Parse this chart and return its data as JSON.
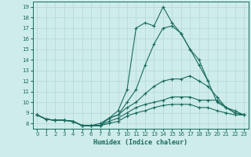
{
  "title": "",
  "xlabel": "Humidex (Indice chaleur)",
  "ylabel": "",
  "bg_color": "#ceecea",
  "grid_color": "#b8dbd8",
  "line_color": "#1a6b5e",
  "xlim": [
    -0.5,
    23.5
  ],
  "ylim": [
    7.5,
    19.5
  ],
  "xticks": [
    0,
    1,
    2,
    3,
    4,
    5,
    6,
    7,
    8,
    9,
    10,
    11,
    12,
    13,
    14,
    15,
    16,
    17,
    18,
    19,
    20,
    21,
    22,
    23
  ],
  "yticks": [
    8,
    9,
    10,
    11,
    12,
    13,
    14,
    15,
    16,
    17,
    18,
    19
  ],
  "series": [
    {
      "x": [
        0,
        1,
        2,
        3,
        4,
        5,
        6,
        7,
        8,
        9,
        10,
        11,
        12,
        13,
        14,
        15,
        16,
        17,
        18,
        19,
        20,
        21,
        22,
        23
      ],
      "y": [
        8.8,
        8.4,
        8.3,
        8.3,
        8.2,
        7.8,
        7.8,
        7.8,
        8.5,
        9.2,
        11.2,
        17.0,
        17.5,
        17.2,
        19.0,
        17.5,
        16.5,
        15.0,
        14.0,
        12.0,
        null,
        null,
        null,
        null
      ]
    },
    {
      "x": [
        0,
        1,
        2,
        3,
        4,
        5,
        6,
        7,
        8,
        9,
        10,
        11,
        12,
        13,
        14,
        15,
        16,
        17,
        18,
        19,
        20,
        21,
        22,
        23
      ],
      "y": [
        8.8,
        8.4,
        8.3,
        8.3,
        8.2,
        7.8,
        7.8,
        7.8,
        8.5,
        8.8,
        10.0,
        11.2,
        13.5,
        15.5,
        17.0,
        17.2,
        16.5,
        15.0,
        13.5,
        12.0,
        10.0,
        9.5,
        9.0,
        8.8
      ]
    },
    {
      "x": [
        0,
        1,
        2,
        3,
        4,
        5,
        6,
        7,
        8,
        9,
        10,
        11,
        12,
        13,
        14,
        15,
        16,
        17,
        18,
        19,
        20,
        21,
        22,
        23
      ],
      "y": [
        8.8,
        8.4,
        8.3,
        8.3,
        8.2,
        7.8,
        7.8,
        8.0,
        8.5,
        8.8,
        9.5,
        10.0,
        10.8,
        11.5,
        12.0,
        12.2,
        12.2,
        12.5,
        12.0,
        11.5,
        10.5,
        9.5,
        9.0,
        8.8
      ]
    },
    {
      "x": [
        0,
        1,
        2,
        3,
        4,
        5,
        6,
        7,
        8,
        9,
        10,
        11,
        12,
        13,
        14,
        15,
        16,
        17,
        18,
        19,
        20,
        21,
        22,
        23
      ],
      "y": [
        8.8,
        8.4,
        8.3,
        8.3,
        8.2,
        7.8,
        7.8,
        7.8,
        8.2,
        8.5,
        9.0,
        9.5,
        9.8,
        10.0,
        10.2,
        10.5,
        10.5,
        10.5,
        10.2,
        10.2,
        10.2,
        9.5,
        9.2,
        8.8
      ]
    },
    {
      "x": [
        0,
        1,
        2,
        3,
        4,
        5,
        6,
        7,
        8,
        9,
        10,
        11,
        12,
        13,
        14,
        15,
        16,
        17,
        18,
        19,
        20,
        21,
        22,
        23
      ],
      "y": [
        8.8,
        8.4,
        8.3,
        8.3,
        8.2,
        7.8,
        7.8,
        7.8,
        8.0,
        8.2,
        8.7,
        9.0,
        9.2,
        9.5,
        9.7,
        9.8,
        9.8,
        9.8,
        9.5,
        9.5,
        9.2,
        9.0,
        8.8,
        8.8
      ]
    }
  ],
  "marker": "+"
}
